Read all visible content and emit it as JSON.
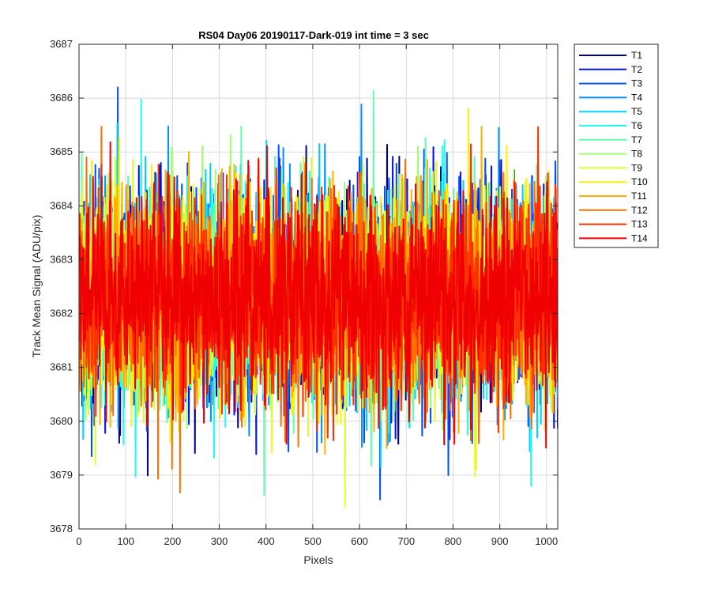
{
  "chart_data": {
    "type": "line",
    "title": "RS04 Day06 20190117-Dark-019 int time = 3 sec",
    "xlabel": "Pixels",
    "ylabel": "Track Mean Signal (ADU/pix)",
    "xlim": [
      0,
      1024
    ],
    "ylim": [
      3678,
      3687
    ],
    "x_ticks": [
      0,
      100,
      200,
      300,
      400,
      500,
      600,
      700,
      800,
      900,
      1000
    ],
    "y_ticks": [
      3678,
      3679,
      3680,
      3681,
      3682,
      3683,
      3684,
      3685,
      3686,
      3687
    ],
    "grid": true,
    "legend_position": "outside-right",
    "x_range_points": [
      1,
      1024
    ],
    "series_mean": 3682.3,
    "series_spread": 1.05,
    "series": [
      {
        "name": "T1",
        "color": "#00008F"
      },
      {
        "name": "T2",
        "color": "#0010FF"
      },
      {
        "name": "T3",
        "color": "#0050FF"
      },
      {
        "name": "T4",
        "color": "#0090FF"
      },
      {
        "name": "T5",
        "color": "#00D0FF"
      },
      {
        "name": "T6",
        "color": "#20FFEF"
      },
      {
        "name": "T7",
        "color": "#60FFAF"
      },
      {
        "name": "T8",
        "color": "#A0FF70"
      },
      {
        "name": "T9",
        "color": "#DFFF30"
      },
      {
        "name": "T10",
        "color": "#FFEF00"
      },
      {
        "name": "T11",
        "color": "#FFB000"
      },
      {
        "name": "T12",
        "color": "#FF7000"
      },
      {
        "name": "T13",
        "color": "#FF3000"
      },
      {
        "name": "T14",
        "color": "#F00000"
      }
    ]
  }
}
